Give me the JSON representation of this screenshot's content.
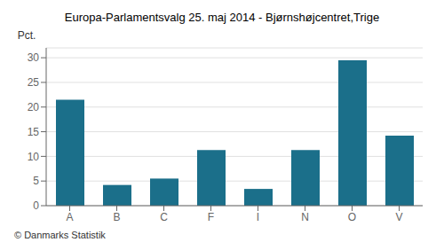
{
  "chart_data": {
    "type": "bar",
    "title": "Europa-Parlamentsvalg 25. maj 2014 - Bjørnshøjcentret,Trige",
    "categories": [
      "A",
      "B",
      "C",
      "F",
      "I",
      "N",
      "O",
      "V"
    ],
    "values": [
      21.5,
      4.2,
      5.5,
      11.3,
      3.4,
      11.3,
      29.5,
      14.2
    ],
    "color": "#1b6f8a",
    "ylabel": "Pct.",
    "ylim": [
      0,
      32
    ],
    "yticks": [
      0,
      5,
      10,
      15,
      20,
      25,
      30
    ],
    "grid": true,
    "footer": "© Danmarks Statistik"
  }
}
